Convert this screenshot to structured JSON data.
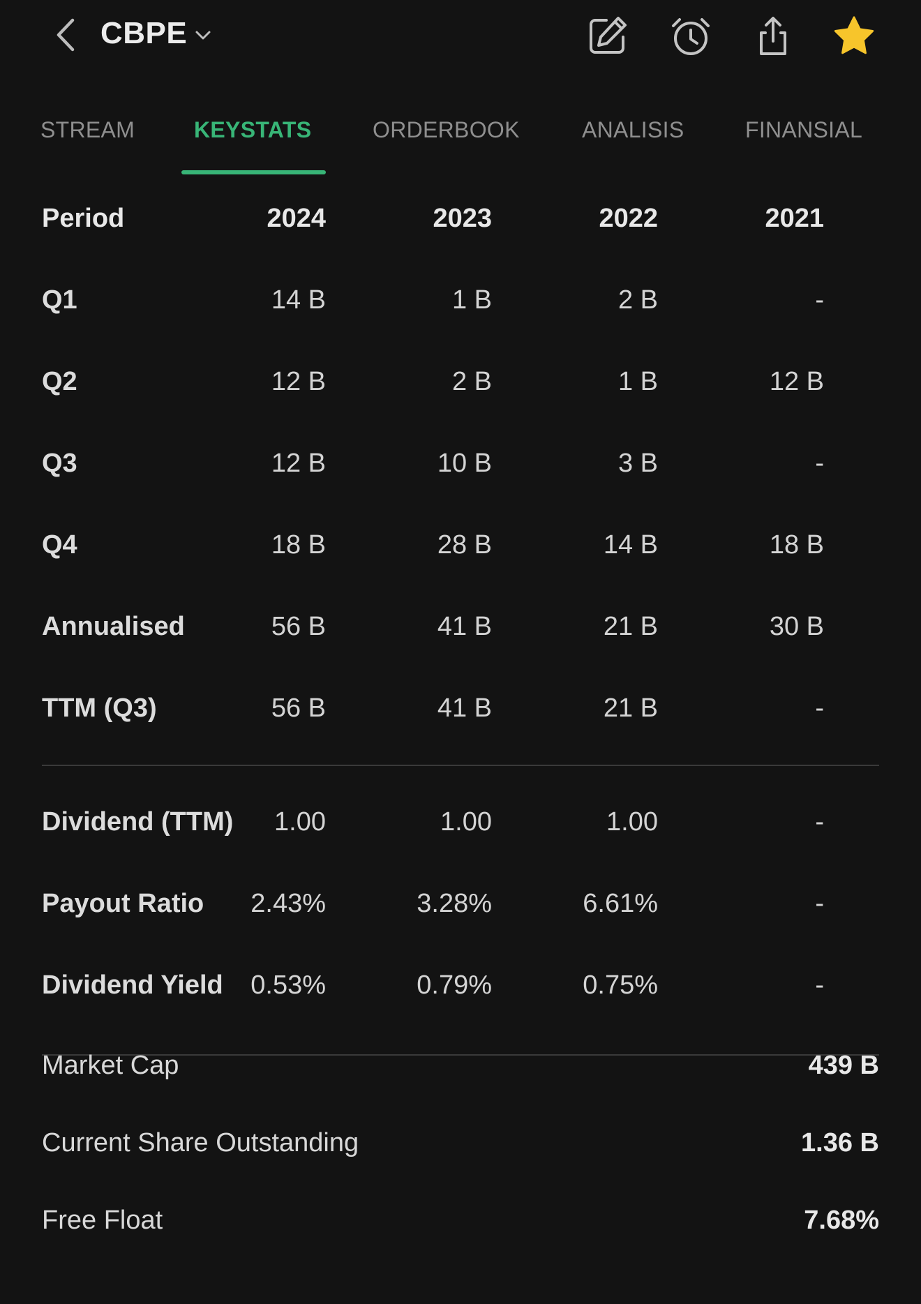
{
  "header": {
    "ticker": "CBPE"
  },
  "icons": {
    "back": "chevron-left-icon",
    "dropdown": "chevron-down-icon",
    "edit": "edit-icon",
    "alarm": "alarm-icon",
    "share": "share-icon",
    "star": "star-icon"
  },
  "colors": {
    "background": "#131313",
    "accent": "#38b577",
    "star": "#f7c52b"
  },
  "tabs": [
    {
      "label": "STREAM",
      "active": false
    },
    {
      "label": "KEYSTATS",
      "active": true
    },
    {
      "label": "ORDERBOOK",
      "active": false
    },
    {
      "label": "ANALISIS",
      "active": false
    },
    {
      "label": "FINANSIAL",
      "active": false
    }
  ],
  "table": {
    "columns": [
      "Period",
      "2024",
      "2023",
      "2022",
      "2021"
    ],
    "rows": [
      {
        "label": "Q1",
        "values": [
          "14 B",
          "1 B",
          "2 B",
          "-"
        ]
      },
      {
        "label": "Q2",
        "values": [
          "12 B",
          "2 B",
          "1 B",
          "12 B"
        ]
      },
      {
        "label": "Q3",
        "values": [
          "12 B",
          "10 B",
          "3 B",
          "-"
        ]
      },
      {
        "label": "Q4",
        "values": [
          "18 B",
          "28 B",
          "14 B",
          "18 B"
        ]
      },
      {
        "label": "Annualised",
        "values": [
          "56 B",
          "41 B",
          "21 B",
          "30 B"
        ]
      },
      {
        "label": "TTM (Q3)",
        "values": [
          "56 B",
          "41 B",
          "21 B",
          "-"
        ]
      }
    ],
    "dividend_rows": [
      {
        "label": "Dividend (TTM)",
        "values": [
          "1.00",
          "1.00",
          "1.00",
          "-"
        ]
      },
      {
        "label": "Payout Ratio",
        "values": [
          "2.43%",
          "3.28%",
          "6.61%",
          "-"
        ]
      },
      {
        "label": "Dividend Yield",
        "values": [
          "0.53%",
          "0.79%",
          "0.75%",
          "-"
        ]
      }
    ]
  },
  "summary": [
    {
      "label": "Market Cap",
      "value": "439 B"
    },
    {
      "label": "Current Share Outstanding",
      "value": "1.36 B"
    },
    {
      "label": "Free Float",
      "value": "7.68%"
    }
  ]
}
